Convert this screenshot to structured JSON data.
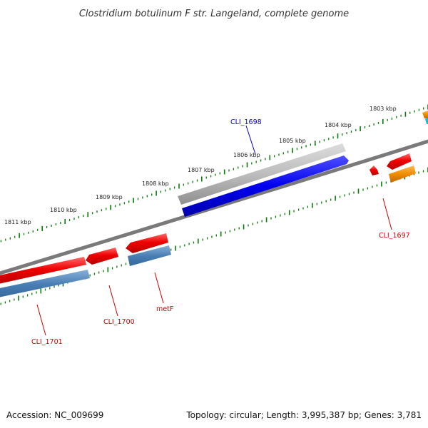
{
  "title": "Clostridium botulinum F str. Langeland, complete genome",
  "footer": {
    "accession": "Accession: NC_009699",
    "topology": "Topology: circular; Length: 3,995,387 bp; Genes: 3,781"
  },
  "kbp_labels": [
    "1811 kbp",
    "1810 kbp",
    "1809 kbp",
    "1808 kbp",
    "1807 kbp",
    "1806 kbp",
    "1805 kbp",
    "1804 kbp",
    "1803 kbp"
  ],
  "genes": {
    "cli1698": "CLI_1698",
    "cli1697": "CLI_1697",
    "cli1700": "CLI_1700",
    "metf": "metF",
    "cli1701": "CLI_1701"
  },
  "colors": {
    "backbone": "#7a7a7a",
    "gene_red": "#ee0000",
    "cds_blue": "#4a7fb5",
    "cds_strong_blue": "#0000ee",
    "gene_gray": "#b8b8b8",
    "gene_orange": "#f08c00",
    "gene_cyan": "#00c8d8",
    "ticks": "#0a7a0a",
    "label_blue": "#0000cc",
    "label_red": "#cc0000"
  }
}
